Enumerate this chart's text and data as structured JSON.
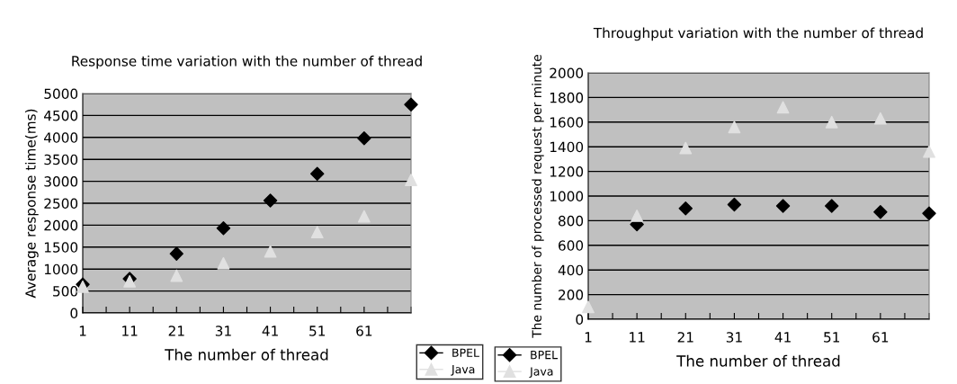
{
  "chart_data": [
    {
      "type": "scatter",
      "title": "Response time variation with the number of thread",
      "xlabel": "The number of thread",
      "ylabel": "Average response time(ms)",
      "x": [
        1,
        11,
        21,
        31,
        41,
        51,
        61,
        71
      ],
      "series": [
        {
          "name": "BPEL",
          "color": "#000000",
          "marker": "diamond",
          "values": [
            650,
            780,
            1350,
            1930,
            2560,
            3170,
            3980,
            4750
          ]
        },
        {
          "name": "Java",
          "color": "#e0e0e0",
          "marker": "triangle",
          "values": [
            600,
            720,
            850,
            1130,
            1400,
            1840,
            2200,
            3030
          ]
        }
      ],
      "xlim": [
        1,
        71
      ],
      "xticks": [
        1,
        {
          "value": 6,
          "label": null
        },
        11,
        {
          "value": 16,
          "label": null
        },
        21,
        {
          "value": 26,
          "label": null
        },
        31,
        {
          "value": 36,
          "label": null
        },
        41,
        {
          "value": 46,
          "label": null
        },
        51,
        {
          "value": 56,
          "label": null
        },
        61,
        {
          "value": 66,
          "label": null
        },
        {
          "value": 71,
          "label": null
        }
      ],
      "ylim": [
        0,
        5000
      ],
      "yticks": [
        0,
        500,
        1000,
        1500,
        2000,
        2500,
        3000,
        3500,
        4000,
        4500,
        5000
      ],
      "grid": "y",
      "legend": "bottom right"
    },
    {
      "type": "scatter",
      "title": "Throughput variation with the number of thread",
      "xlabel": "The number of thread",
      "ylabel": "The number of processed request per minute",
      "x": [
        1,
        11,
        21,
        31,
        41,
        51,
        61,
        71
      ],
      "series": [
        {
          "name": "BPEL",
          "color": "#000000",
          "marker": "diamond",
          "values": [
            null,
            770,
            900,
            930,
            920,
            920,
            870,
            860
          ]
        },
        {
          "name": "Java",
          "color": "#e0e0e0",
          "marker": "triangle",
          "values": [
            100,
            840,
            1390,
            1560,
            1720,
            1600,
            1630,
            1360
          ]
        }
      ],
      "xlim": [
        1,
        71
      ],
      "xticks": [
        1,
        {
          "value": 6,
          "label": null
        },
        11,
        {
          "value": 16,
          "label": null
        },
        21,
        {
          "value": 26,
          "label": null
        },
        31,
        {
          "value": 36,
          "label": null
        },
        41,
        {
          "value": 46,
          "label": null
        },
        51,
        {
          "value": 56,
          "label": null
        },
        61,
        {
          "value": 66,
          "label": null
        },
        {
          "value": 71,
          "label": null
        }
      ],
      "ylim": [
        0,
        2000
      ],
      "yticks": [
        0,
        200,
        400,
        600,
        800,
        1000,
        1200,
        1400,
        1600,
        1800,
        2000
      ],
      "grid": "y",
      "legend": "bottom left"
    }
  ]
}
